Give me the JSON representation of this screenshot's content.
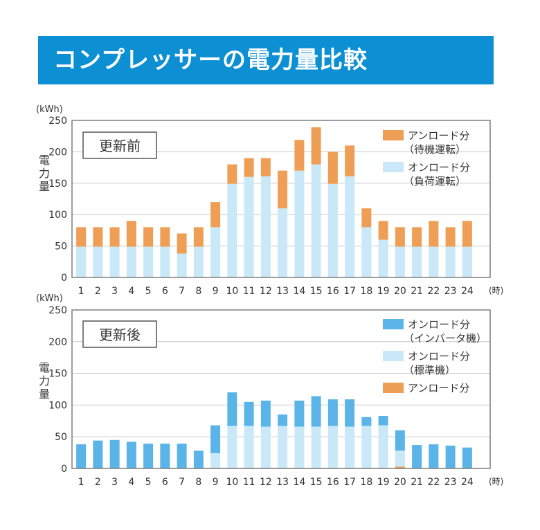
{
  "banner": {
    "title": "コンプレッサーの電力量比較",
    "color": "#0c8fd3"
  },
  "colors": {
    "standby": "#ef9f55",
    "load_before": "#c9e8f8",
    "inverter": "#5bb4e8",
    "standard": "#c9e8f8",
    "grid": "#c8c8c8",
    "frame": "#7d7d7d"
  },
  "chart_data": [
    {
      "type": "bar",
      "stacked": true,
      "panel_label": "更新前",
      "unit_label": "(kWh)",
      "ylabel": "電力量",
      "xlabel_unit": "(時)",
      "ylim": [
        0,
        250
      ],
      "yticks": [
        0,
        50,
        100,
        150,
        200,
        250
      ],
      "grid": true,
      "legend_position": "top-right",
      "categories": [
        "1",
        "2",
        "3",
        "4",
        "5",
        "6",
        "7",
        "8",
        "9",
        "10",
        "11",
        "12",
        "13",
        "14",
        "15",
        "16",
        "17",
        "18",
        "19",
        "20",
        "21",
        "22",
        "23",
        "24"
      ],
      "series": [
        {
          "name": "オンロード分（負荷運転）",
          "color_key": "load_before",
          "values": [
            49,
            49,
            49,
            49,
            49,
            49,
            38,
            49,
            80,
            149,
            160,
            161,
            110,
            170,
            180,
            149,
            161,
            80,
            60,
            49,
            49,
            49,
            49,
            49
          ]
        },
        {
          "name": "アンロード分（待機運転）",
          "color_key": "standby",
          "values": [
            31,
            31,
            31,
            41,
            31,
            31,
            32,
            31,
            40,
            31,
            30,
            29,
            60,
            49,
            59,
            51,
            49,
            30,
            30,
            31,
            31,
            41,
            31,
            41
          ]
        }
      ],
      "legend": [
        {
          "line1": "アンロード分",
          "line2": "（待機運転）",
          "color_key": "standby"
        },
        {
          "line1": "オンロード分",
          "line2": "（負荷運転）",
          "color_key": "load_before"
        }
      ]
    },
    {
      "type": "bar",
      "stacked": true,
      "panel_label": "更新後",
      "unit_label": "(kWh)",
      "ylabel": "電力量",
      "xlabel_unit": "(時)",
      "ylim": [
        0,
        250
      ],
      "yticks": [
        0,
        50,
        100,
        150,
        200,
        250
      ],
      "grid": true,
      "legend_position": "top-right",
      "categories": [
        "1",
        "2",
        "3",
        "4",
        "5",
        "6",
        "7",
        "8",
        "9",
        "10",
        "11",
        "12",
        "13",
        "14",
        "15",
        "16",
        "17",
        "18",
        "19",
        "20",
        "21",
        "22",
        "23",
        "24"
      ],
      "series": [
        {
          "name": "アンロード分",
          "color_key": "standby",
          "values": [
            0,
            0,
            0,
            0,
            0,
            0,
            0,
            0,
            0,
            0,
            0,
            0,
            0,
            0,
            0,
            0,
            0,
            0,
            0,
            3,
            0,
            0,
            0,
            0
          ]
        },
        {
          "name": "オンロード分（標準機）",
          "color_key": "standard",
          "values": [
            0,
            0,
            0,
            0,
            0,
            0,
            0,
            0,
            24,
            67,
            67,
            66,
            67,
            66,
            66,
            67,
            66,
            67,
            68,
            25,
            0,
            0,
            0,
            0
          ]
        },
        {
          "name": "オンロード分（インバータ機）",
          "color_key": "inverter",
          "values": [
            38,
            44,
            45,
            42,
            39,
            39,
            39,
            28,
            44,
            53,
            38,
            41,
            18,
            41,
            48,
            42,
            43,
            14,
            15,
            32,
            37,
            38,
            36,
            33
          ]
        }
      ],
      "legend": [
        {
          "line1": "オンロード分",
          "line2": "（インバータ機）",
          "color_key": "inverter"
        },
        {
          "line1": "オンロード分",
          "line2": "（標準機）",
          "color_key": "standard"
        },
        {
          "line1": "アンロード分",
          "line2": "",
          "color_key": "standby"
        }
      ]
    }
  ]
}
